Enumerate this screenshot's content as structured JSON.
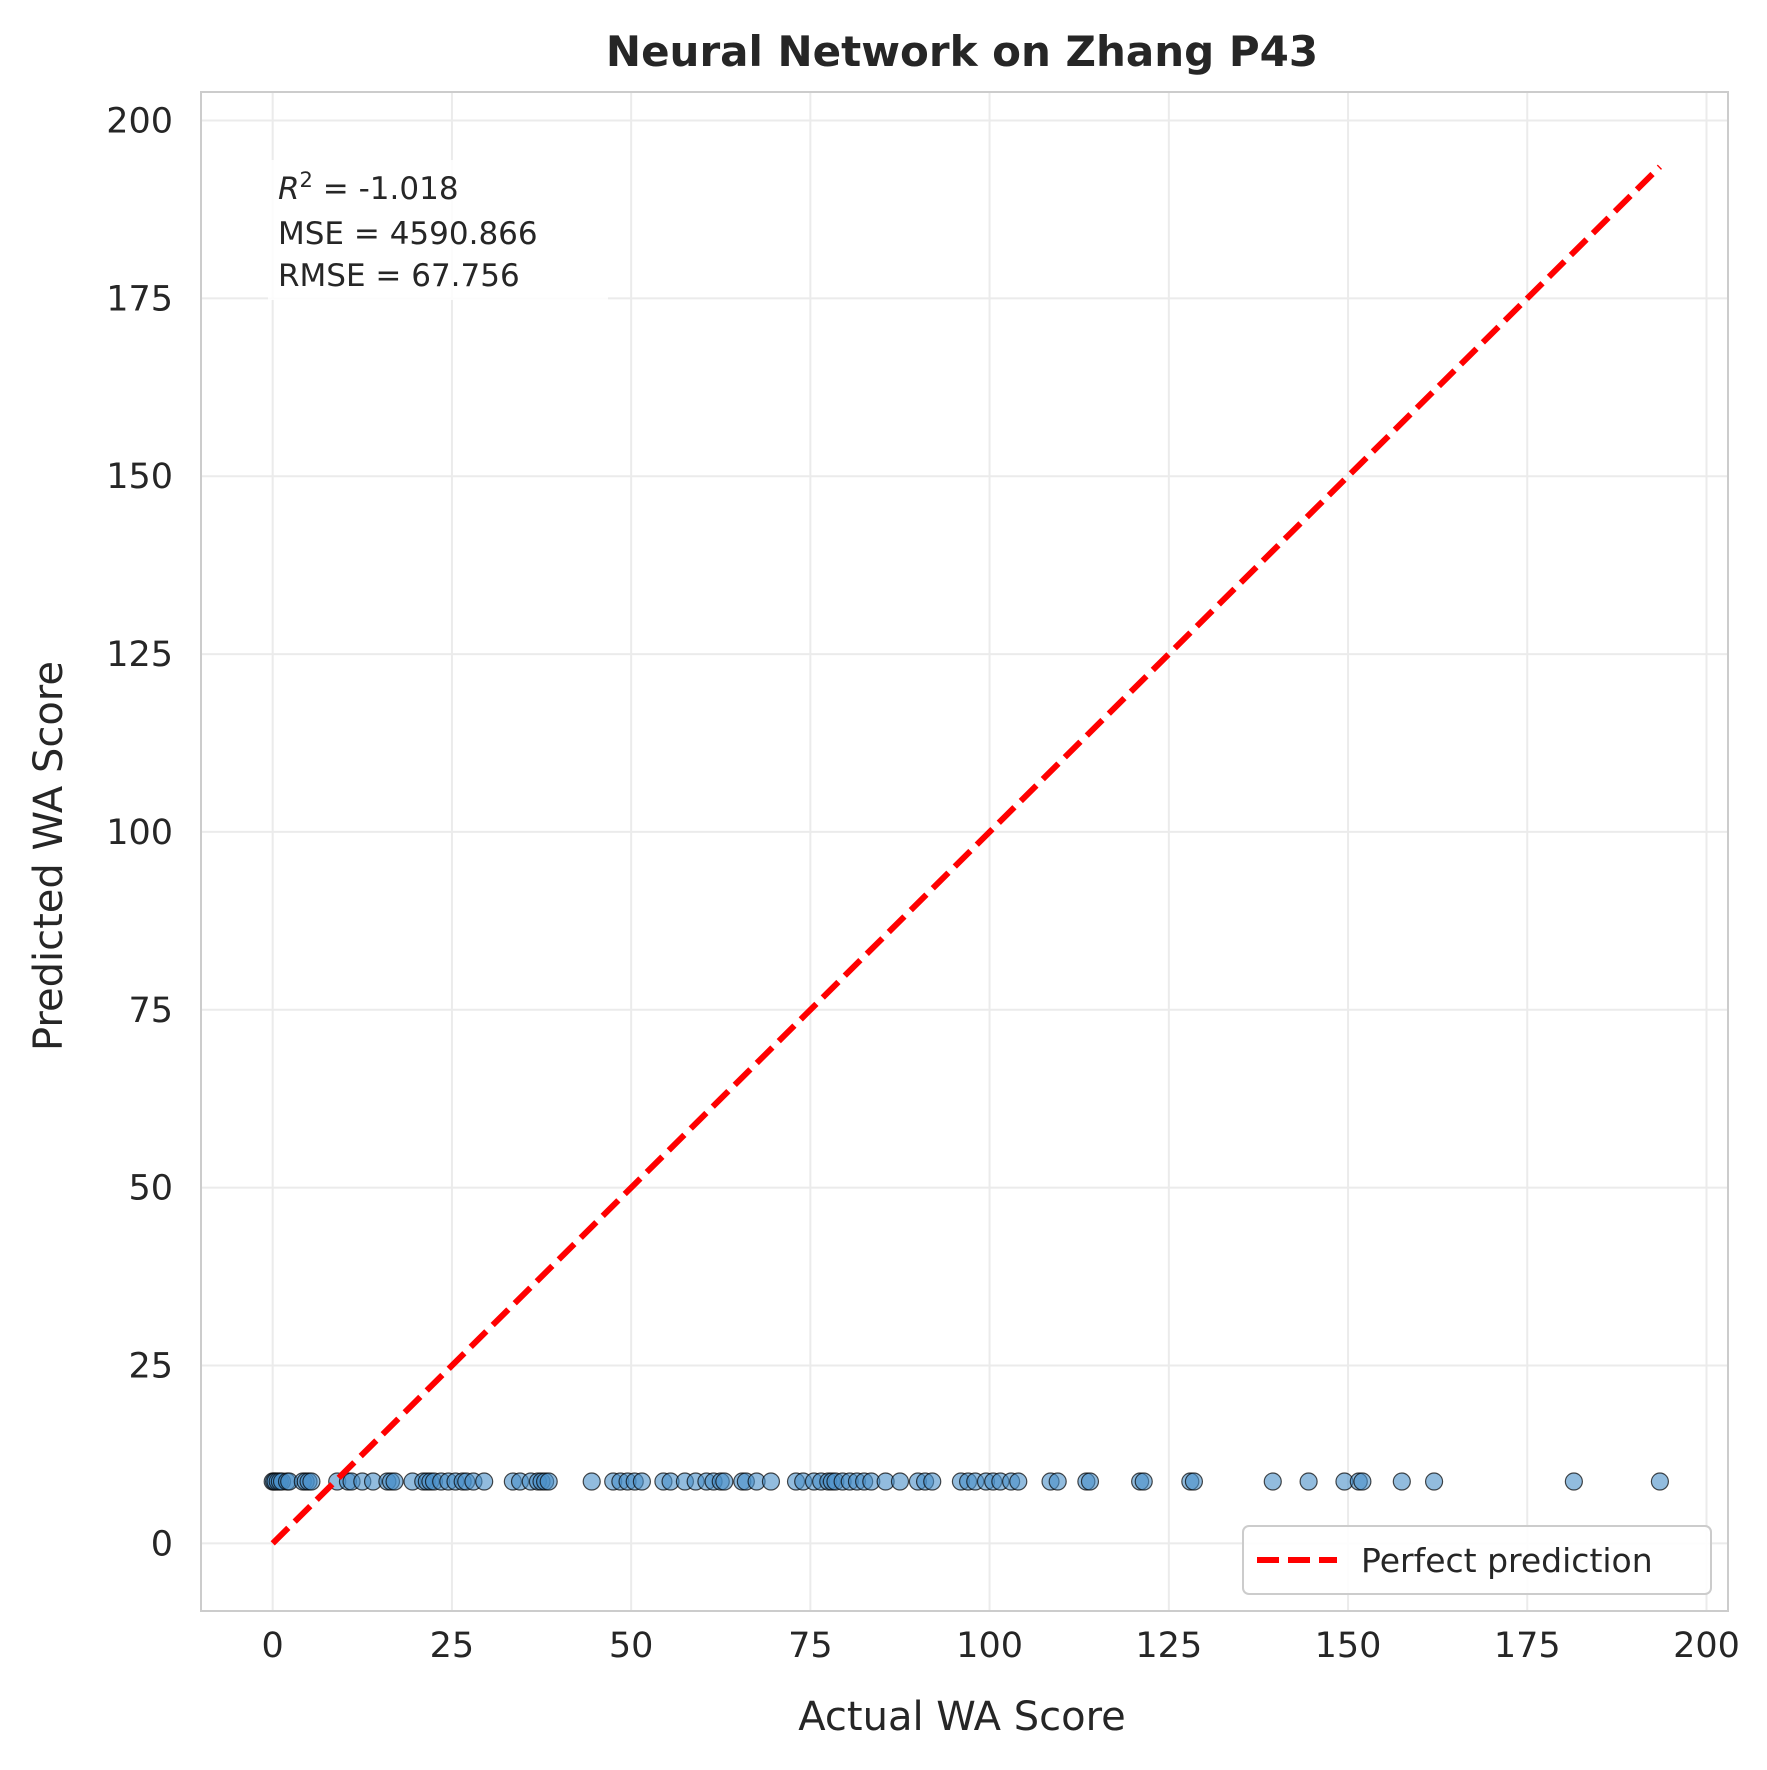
{
  "chart_data": {
    "type": "scatter",
    "title": "Neural Network on Zhang P43",
    "xlabel": "Actual WA Score",
    "ylabel": "Predicted WA Score",
    "xlim": [
      -10,
      203
    ],
    "ylim": [
      -9.5,
      204
    ],
    "xticks": [
      0,
      25,
      50,
      75,
      100,
      125,
      150,
      175,
      200
    ],
    "yticks": [
      0,
      25,
      50,
      75,
      100,
      125,
      150,
      175,
      200
    ],
    "xtick_labels": [
      "0",
      "25",
      "50",
      "75",
      "100",
      "125",
      "150",
      "175",
      "200"
    ],
    "ytick_labels": [
      "0",
      "25",
      "50",
      "75",
      "100",
      "125",
      "150",
      "175",
      "200"
    ],
    "grid": true,
    "legend_position": "lower-right",
    "annotation": {
      "r2_symbol": "R",
      "r2_exponent": "2",
      "r2_value": " = -1.018",
      "mse": "MSE = 4590.866",
      "rmse": "RMSE = 67.756"
    },
    "series": [
      {
        "kind": "scatter",
        "color": "#4a90c8",
        "x": [
          0,
          0.2,
          0.4,
          0.7,
          1,
          1.3,
          2,
          2.3,
          4.2,
          4.6,
          5,
          5.4,
          9,
          10.5,
          11,
          12.5,
          14,
          16,
          16.5,
          17,
          19.5,
          21,
          21.5,
          22,
          22.5,
          23.5,
          24.5,
          25.5,
          26.5,
          27,
          28,
          29.5,
          33.5,
          34.5,
          36,
          37,
          37.5,
          38,
          38.5,
          44.5,
          47.5,
          48.5,
          49.5,
          50.5,
          51.5,
          54.5,
          55.5,
          57.5,
          59,
          60.5,
          61.5,
          62.5,
          63,
          65.5,
          66,
          67.5,
          69.5,
          73,
          74,
          75.5,
          76.5,
          77.5,
          78,
          78.5,
          79.5,
          80.5,
          81.5,
          82.5,
          83.5,
          85.5,
          87.5,
          90,
          91,
          92,
          96,
          97,
          98,
          99.5,
          100.5,
          101.5,
          103,
          104,
          108.5,
          109.5,
          113.5,
          114,
          121,
          121.5,
          128,
          128.5,
          139.5,
          144.5,
          149.5,
          151.5,
          152,
          157.5,
          162,
          181.5,
          193.5
        ],
        "y": [
          8.7,
          8.7,
          8.7,
          8.7,
          8.7,
          8.7,
          8.7,
          8.7,
          8.7,
          8.7,
          8.7,
          8.7,
          8.7,
          8.7,
          8.7,
          8.7,
          8.7,
          8.7,
          8.7,
          8.7,
          8.7,
          8.7,
          8.7,
          8.7,
          8.7,
          8.7,
          8.7,
          8.7,
          8.7,
          8.7,
          8.7,
          8.7,
          8.7,
          8.7,
          8.7,
          8.7,
          8.7,
          8.7,
          8.7,
          8.7,
          8.7,
          8.7,
          8.7,
          8.7,
          8.7,
          8.7,
          8.7,
          8.7,
          8.7,
          8.7,
          8.7,
          8.7,
          8.7,
          8.7,
          8.7,
          8.7,
          8.7,
          8.7,
          8.7,
          8.7,
          8.7,
          8.7,
          8.7,
          8.7,
          8.7,
          8.7,
          8.7,
          8.7,
          8.7,
          8.7,
          8.7,
          8.7,
          8.7,
          8.7,
          8.7,
          8.7,
          8.7,
          8.7,
          8.7,
          8.7,
          8.7,
          8.7,
          8.7,
          8.7,
          8.7,
          8.7,
          8.7,
          8.7,
          8.7,
          8.7,
          8.7,
          8.7,
          8.7,
          8.7,
          8.7,
          8.7,
          8.7,
          8.7,
          8.7
        ]
      },
      {
        "kind": "line",
        "name": "Perfect prediction",
        "color": "#ff0000",
        "dashed": true,
        "x": [
          0,
          193.5
        ],
        "y": [
          0,
          193.5
        ]
      }
    ]
  }
}
